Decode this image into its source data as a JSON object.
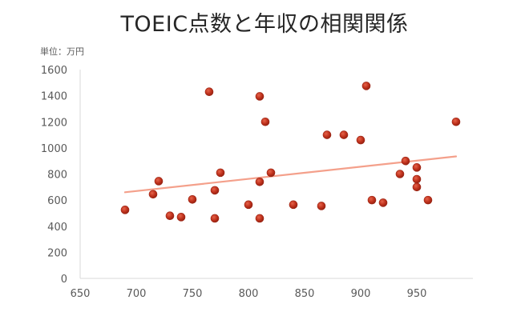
{
  "chart_data": {
    "type": "scatter",
    "title": "TOEIC点数と年収の相関関係",
    "unit_label": "単位：万円",
    "xlabel": "",
    "ylabel": "",
    "xlim": [
      650,
      1000
    ],
    "ylim": [
      0,
      1600
    ],
    "x_ticks": [
      650,
      700,
      750,
      800,
      850,
      900,
      950
    ],
    "y_ticks": [
      0,
      200,
      400,
      600,
      800,
      1000,
      1200,
      1400,
      1600
    ],
    "grid": false,
    "legend": "none",
    "marker_color": "#c0321d",
    "trendline_color": "#f4a08b",
    "trendline": {
      "type": "linear",
      "x": [
        690,
        985
      ],
      "y": [
        660,
        935
      ]
    },
    "points": [
      {
        "x": 690,
        "y": 525
      },
      {
        "x": 715,
        "y": 645
      },
      {
        "x": 720,
        "y": 745
      },
      {
        "x": 730,
        "y": 480
      },
      {
        "x": 740,
        "y": 470
      },
      {
        "x": 750,
        "y": 605
      },
      {
        "x": 765,
        "y": 1430
      },
      {
        "x": 770,
        "y": 460
      },
      {
        "x": 770,
        "y": 675
      },
      {
        "x": 775,
        "y": 810
      },
      {
        "x": 800,
        "y": 565
      },
      {
        "x": 810,
        "y": 460
      },
      {
        "x": 810,
        "y": 740
      },
      {
        "x": 810,
        "y": 1395
      },
      {
        "x": 815,
        "y": 1200
      },
      {
        "x": 820,
        "y": 810
      },
      {
        "x": 840,
        "y": 565
      },
      {
        "x": 865,
        "y": 555
      },
      {
        "x": 870,
        "y": 1100
      },
      {
        "x": 885,
        "y": 1100
      },
      {
        "x": 900,
        "y": 1060
      },
      {
        "x": 905,
        "y": 1475
      },
      {
        "x": 910,
        "y": 600
      },
      {
        "x": 920,
        "y": 580
      },
      {
        "x": 935,
        "y": 800
      },
      {
        "x": 940,
        "y": 900
      },
      {
        "x": 950,
        "y": 700
      },
      {
        "x": 950,
        "y": 760
      },
      {
        "x": 950,
        "y": 850
      },
      {
        "x": 960,
        "y": 600
      },
      {
        "x": 985,
        "y": 1200
      }
    ]
  }
}
